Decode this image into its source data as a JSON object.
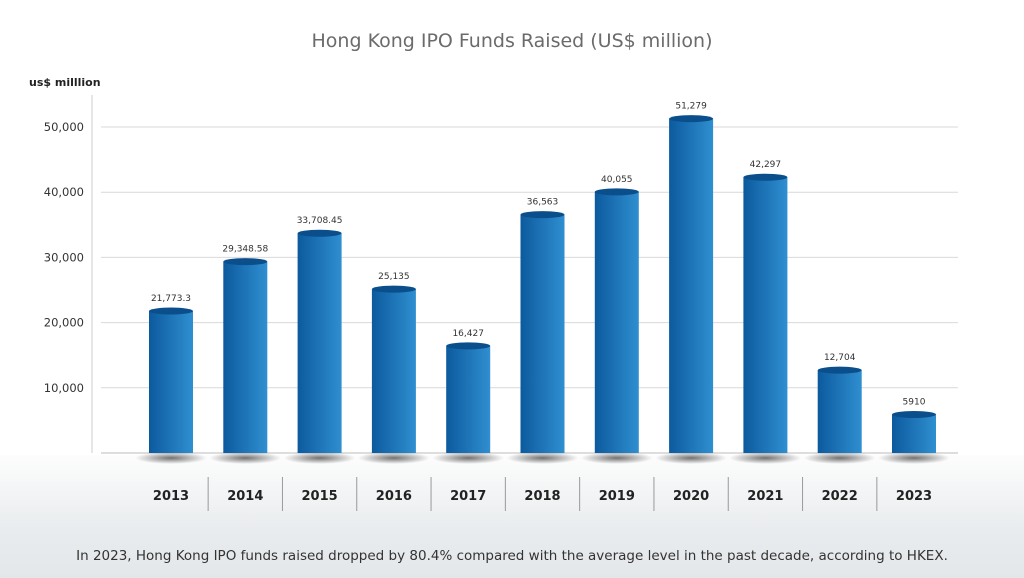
{
  "chart_data": {
    "type": "bar",
    "title": "Hong Kong IPO Funds Raised (US$ million)",
    "ylabel": "us$ milllion",
    "xlabel": "",
    "categories": [
      "2013",
      "2014",
      "2015",
      "2016",
      "2017",
      "2018",
      "2019",
      "2020",
      "2021",
      "2022",
      "2023"
    ],
    "values": [
      21773.3,
      29348.58,
      33708.45,
      25135,
      16427,
      36563,
      40055,
      51279,
      42297,
      12704,
      5910
    ],
    "data_labels": [
      "21,773.3",
      "29,348.58",
      "33,708.45",
      "25,135",
      "16,427",
      "36,563",
      "40,055",
      "51,279",
      "42,297",
      "12,704",
      "5910"
    ],
    "yticks": [
      10000,
      20000,
      30000,
      40000,
      50000
    ],
    "ytick_labels": [
      "10,000",
      "20,000",
      "30,000",
      "40,000",
      "50,000"
    ],
    "ylim": [
      0,
      55000
    ],
    "grid": true,
    "colors": {
      "bar_dark": "#0c5a9e",
      "bar_light": "#2f8fd0",
      "bar_top": "#0a4f8c",
      "grid": "#d9d9d9"
    }
  },
  "footnote": "In 2023, Hong Kong IPO funds raised dropped by 80.4% compared with the average level in the past decade, according to HKEX."
}
